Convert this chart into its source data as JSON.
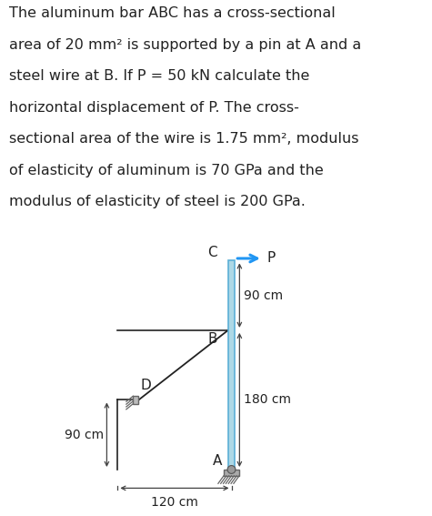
{
  "text_lines": [
    "The aluminum bar ABC has a cross-sectional",
    "area of 20 mm² is supported by a pin at A and a",
    "steel wire at B. If P = 50 kN calculate the",
    "horizontal displacement of P. The cross-",
    "sectional area of the wire is 1.75 mm², modulus",
    "of elasticity of aluminum is 70 GPa and the",
    "modulus of elasticity of steel is 200 GPa."
  ],
  "bar_color": "#add8e6",
  "bar_edge_color": "#5bafd6",
  "support_color": "#999999",
  "wire_color": "#222222",
  "arrow_color": "#2196F3",
  "text_color": "#222222",
  "dim_color": "#444444",
  "background": "#ffffff",
  "text_fontsize": 11.5,
  "label_fontsize": 11,
  "dim_fontsize": 10
}
